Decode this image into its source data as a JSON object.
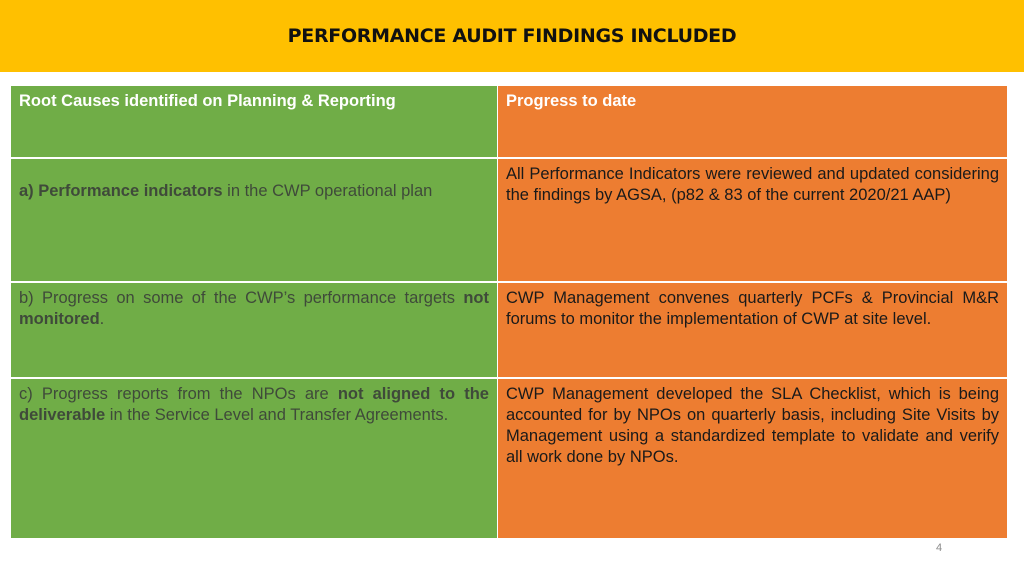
{
  "header": {
    "title": "PERFORMANCE AUDIT FINDINGS INCLUDED"
  },
  "table": {
    "col1_header": "Root Causes identified on Planning & Reporting",
    "col2_header": "Progress to date",
    "rows": [
      {
        "cause": {
          "lead_bold": "a) Performance indicators",
          "rest": " in the CWP operational plan"
        },
        "progress": "All Performance Indicators were reviewed and updated considering the findings by AGSA, (p82 & 83 of the current 2020/21 AAP)"
      },
      {
        "cause": {
          "prefix": "b) Progress on some of the CWP’s performance targets ",
          "bold": "not monitored",
          "suffix": "."
        },
        "progress": "CWP Management convenes quarterly PCFs & Provincial M&R forums to monitor the implementation of CWP at site level."
      },
      {
        "cause": {
          "prefix": "c) Progress reports from the NPOs are ",
          "bold": "not aligned to the deliverable",
          "suffix": " in the Service Level and Transfer Agreements."
        },
        "progress": "CWP Management developed the SLA Checklist, which is being accounted for by NPOs on quarterly basis, including Site Visits by Management using a standardized template to validate and verify all work done by NPOs."
      }
    ]
  },
  "footer": {
    "page_number": "4"
  },
  "colors": {
    "banner": "#FFC000",
    "green": "#70AD47",
    "orange": "#ED7D31"
  }
}
